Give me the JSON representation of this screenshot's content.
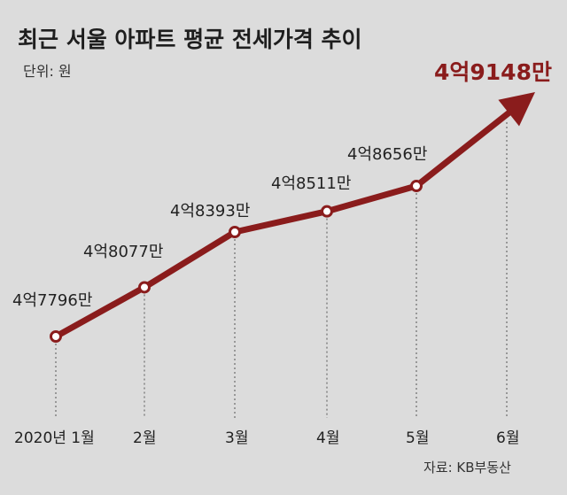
{
  "chart_data": {
    "type": "line",
    "title": "최근 서울 아파트 평균 전세가격 추이",
    "unit_label": "단위: 원",
    "source": "자료: KB부동산",
    "categories": [
      "2020년 1월",
      "2월",
      "3월",
      "4월",
      "5월",
      "6월"
    ],
    "values": [
      477960000,
      480770000,
      483930000,
      485110000,
      486560000,
      491480000
    ],
    "data_labels": [
      "4억7796만",
      "4억8077만",
      "4억8393만",
      "4억8511만",
      "4억8656만",
      "4억9148만"
    ],
    "highlight_index": 5,
    "grid": "vertical dotted lines at each month",
    "legend": "none",
    "colors": {
      "line": "#8a1c1c",
      "marker_fill": "#ffffff",
      "background": "#dcdcdc"
    }
  }
}
